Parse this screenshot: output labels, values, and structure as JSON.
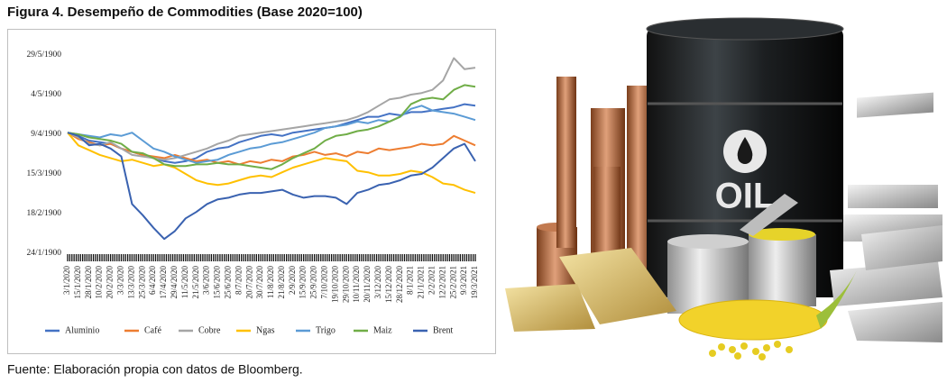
{
  "chart_data": {
    "type": "line",
    "title": "Figura 4. Desempeño de Commodities (Base 2020=100)",
    "categories": [
      "3/1/2020",
      "15/1/2020",
      "28/1/2020",
      "10/2/2020",
      "20/2/2020",
      "3/3/2020",
      "13/3/2020",
      "25/3/2020",
      "6/4/2020",
      "17/4/2020",
      "29/4/2020",
      "11/5/2020",
      "21/5/2020",
      "3/6/2020",
      "15/6/2020",
      "25/6/2020",
      "8/7/2020",
      "20/7/2020",
      "30/7/2020",
      "11/8/2020",
      "21/8/2020",
      "2/9/2020",
      "15/9/2020",
      "25/9/2020",
      "7/10/2020",
      "19/10/2020",
      "29/10/2020",
      "10/11/2020",
      "20/11/2020",
      "3/12/2020",
      "15/12/2020",
      "28/12/2020",
      "8/1/2021",
      "21/1/2021",
      "2/2/2021",
      "12/2/2021",
      "25/2/2021",
      "9/3/2021",
      "19/3/2021"
    ],
    "series": [
      {
        "name": "Aluminio",
        "color": "#4472c4",
        "values": [
          100,
          98,
          95,
          94,
          93,
          90,
          88,
          86,
          84,
          82,
          81,
          82,
          84,
          88,
          90,
          91,
          94,
          96,
          98,
          99,
          98,
          100,
          101,
          102,
          103,
          104,
          106,
          108,
          110,
          110,
          112,
          111,
          113,
          113,
          114,
          115,
          116,
          118,
          117
        ]
      },
      {
        "name": "Café",
        "color": "#ed7d31",
        "values": [
          100,
          96,
          94,
          92,
          93,
          90,
          88,
          86,
          85,
          84,
          86,
          84,
          82,
          83,
          81,
          82,
          80,
          82,
          81,
          83,
          82,
          85,
          86,
          88,
          86,
          87,
          85,
          88,
          87,
          90,
          89,
          90,
          91,
          93,
          92,
          93,
          98,
          95,
          92
        ]
      },
      {
        "name": "Cobre",
        "color": "#a5a5a5",
        "values": [
          100,
          97,
          93,
          92,
          94,
          90,
          86,
          85,
          84,
          83,
          84,
          86,
          88,
          90,
          93,
          95,
          98,
          99,
          100,
          101,
          102,
          103,
          104,
          105,
          106,
          107,
          108,
          110,
          113,
          117,
          121,
          122,
          124,
          125,
          127,
          133,
          147,
          140,
          141
        ]
      },
      {
        "name": "Ngas",
        "color": "#ffc000",
        "values": [
          100,
          92,
          89,
          86,
          84,
          82,
          83,
          81,
          79,
          80,
          78,
          74,
          70,
          68,
          67,
          68,
          70,
          72,
          73,
          72,
          75,
          78,
          80,
          82,
          84,
          83,
          82,
          76,
          75,
          73,
          73,
          74,
          76,
          75,
          72,
          68,
          67,
          64,
          62
        ]
      },
      {
        "name": "Trigo",
        "color": "#5b9bd5",
        "values": [
          100,
          99,
          98,
          97,
          99,
          98,
          100,
          95,
          90,
          88,
          85,
          83,
          81,
          82,
          83,
          86,
          88,
          90,
          91,
          93,
          94,
          96,
          98,
          100,
          103,
          104,
          105,
          107,
          106,
          108,
          107,
          110,
          115,
          117,
          114,
          113,
          112,
          110,
          108
        ]
      },
      {
        "name": "Maiz",
        "color": "#70ad47",
        "values": [
          100,
          99,
          97,
          96,
          95,
          93,
          88,
          87,
          84,
          80,
          79,
          79,
          80,
          80,
          81,
          80,
          80,
          79,
          78,
          77,
          80,
          84,
          87,
          90,
          95,
          98,
          99,
          101,
          102,
          104,
          107,
          110,
          118,
          121,
          122,
          121,
          127,
          130,
          129
        ]
      },
      {
        "name": "Brent",
        "color": "#3a62b0",
        "values": [
          100,
          98,
          92,
          93,
          90,
          85,
          55,
          48,
          40,
          33,
          38,
          46,
          50,
          55,
          58,
          59,
          61,
          62,
          62,
          63,
          64,
          61,
          59,
          60,
          60,
          59,
          55,
          62,
          64,
          67,
          68,
          70,
          73,
          74,
          78,
          84,
          90,
          93,
          82
        ]
      }
    ],
    "ylim": [
      24,
      149
    ],
    "yticks": [
      {
        "value": 24,
        "label": "24/1/1900"
      },
      {
        "value": 49,
        "label": "18/2/1900"
      },
      {
        "value": 74,
        "label": "15/3/1900"
      },
      {
        "value": 99,
        "label": "9/4/1900"
      },
      {
        "value": 124,
        "label": "4/5/1900"
      },
      {
        "value": 149,
        "label": "29/5/1900"
      }
    ],
    "grid": false,
    "legend": "bottom"
  },
  "source": "Fuente: Elaboración propia con datos de Bloomberg.",
  "image": {
    "barrel_label": "OIL"
  }
}
